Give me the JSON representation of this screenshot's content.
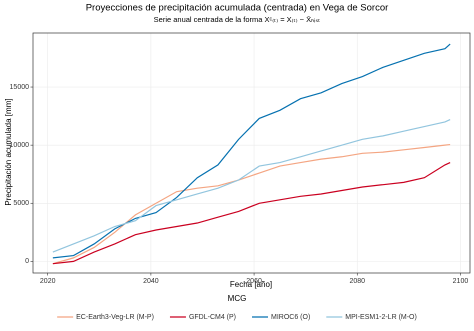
{
  "chart_data": {
    "type": "line",
    "title": "Proyecciones de precipitación acumulada (centrada) en Vega de Sorcor",
    "subtitle": "Serie anual centrada de la forma Xᶜ₍ₜ₎ = X₍ₜ₎ − X̄ₕᵢₛₜ",
    "x_label": "Fecha [año]",
    "y_label": "Precipitación acumulada [mm]",
    "legend_title": "MCG",
    "legend_position": "bottom",
    "grid": true,
    "x": [
      2021,
      2025,
      2029,
      2033,
      2037,
      2041,
      2045,
      2049,
      2053,
      2057,
      2061,
      2065,
      2069,
      2073,
      2077,
      2081,
      2085,
      2089,
      2093,
      2097,
      2098
    ],
    "series": [
      {
        "name": "EC-Earth3-Veg-LR (M-P)",
        "color": "#f4a582",
        "values": [
          -200,
          300,
          1200,
          2500,
          4000,
          5000,
          6000,
          6300,
          6500,
          7000,
          7600,
          8200,
          8500,
          8800,
          9000,
          9300,
          9400,
          9600,
          9800,
          10000,
          10050
        ]
      },
      {
        "name": "GFDL-CM4 (P)",
        "color": "#ca0020",
        "values": [
          -200,
          0,
          800,
          1500,
          2300,
          2700,
          3000,
          3300,
          3800,
          4300,
          5000,
          5300,
          5600,
          5800,
          6100,
          6400,
          6600,
          6800,
          7200,
          8300,
          8500
        ]
      },
      {
        "name": "MIROC6 (O)",
        "color": "#0571b0",
        "values": [
          300,
          500,
          1500,
          2800,
          3700,
          4200,
          5500,
          7200,
          8300,
          10500,
          12300,
          13000,
          14000,
          14500,
          15300,
          15900,
          16700,
          17300,
          17900,
          18300,
          18700
        ]
      },
      {
        "name": "MPI-ESM1-2-LR (M-O)",
        "color": "#92c5de",
        "values": [
          800,
          1500,
          2200,
          3000,
          3500,
          4800,
          5300,
          5800,
          6300,
          7000,
          8200,
          8500,
          9000,
          9500,
          10000,
          10500,
          10800,
          11200,
          11600,
          12000,
          12200
        ]
      }
    ],
    "xlim": [
      2017.15,
      2101.85
    ],
    "xticks": [
      2020,
      2040,
      2060,
      2080,
      2100
    ],
    "ylim": [
      -1000,
      19650
    ],
    "yticks": [
      0,
      5000,
      10000,
      15000
    ]
  }
}
